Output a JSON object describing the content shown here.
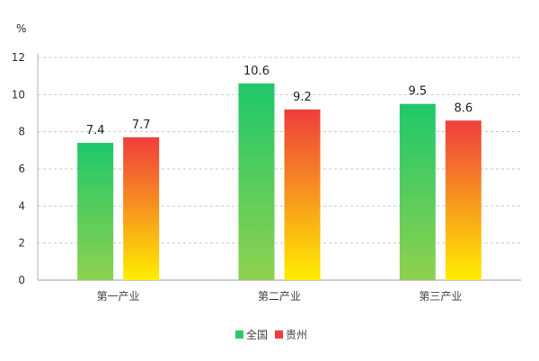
{
  "chart_data": {
    "type": "bar",
    "unit": "%",
    "categories": [
      "第一产业",
      "第二产业",
      "第三产业"
    ],
    "series": [
      {
        "name": "全国",
        "values": [
          7.4,
          10.6,
          9.5
        ],
        "gradient": [
          "#1ec86a",
          "#8fd14f"
        ]
      },
      {
        "name": "贵州",
        "values": [
          7.7,
          9.2,
          8.6
        ],
        "gradient": [
          "#ef3d3d",
          "#ffee00"
        ]
      }
    ],
    "ylim": [
      0,
      12
    ],
    "yticks": [
      0,
      2,
      4,
      6,
      8,
      10,
      12
    ],
    "grid": true,
    "legend_position": "bottom-center",
    "colors": {
      "gridline": "#c8c8c8",
      "axis": "#b0b0b0",
      "green_swatch": "#2ec866",
      "red_swatch": "#ef3d3d"
    }
  }
}
